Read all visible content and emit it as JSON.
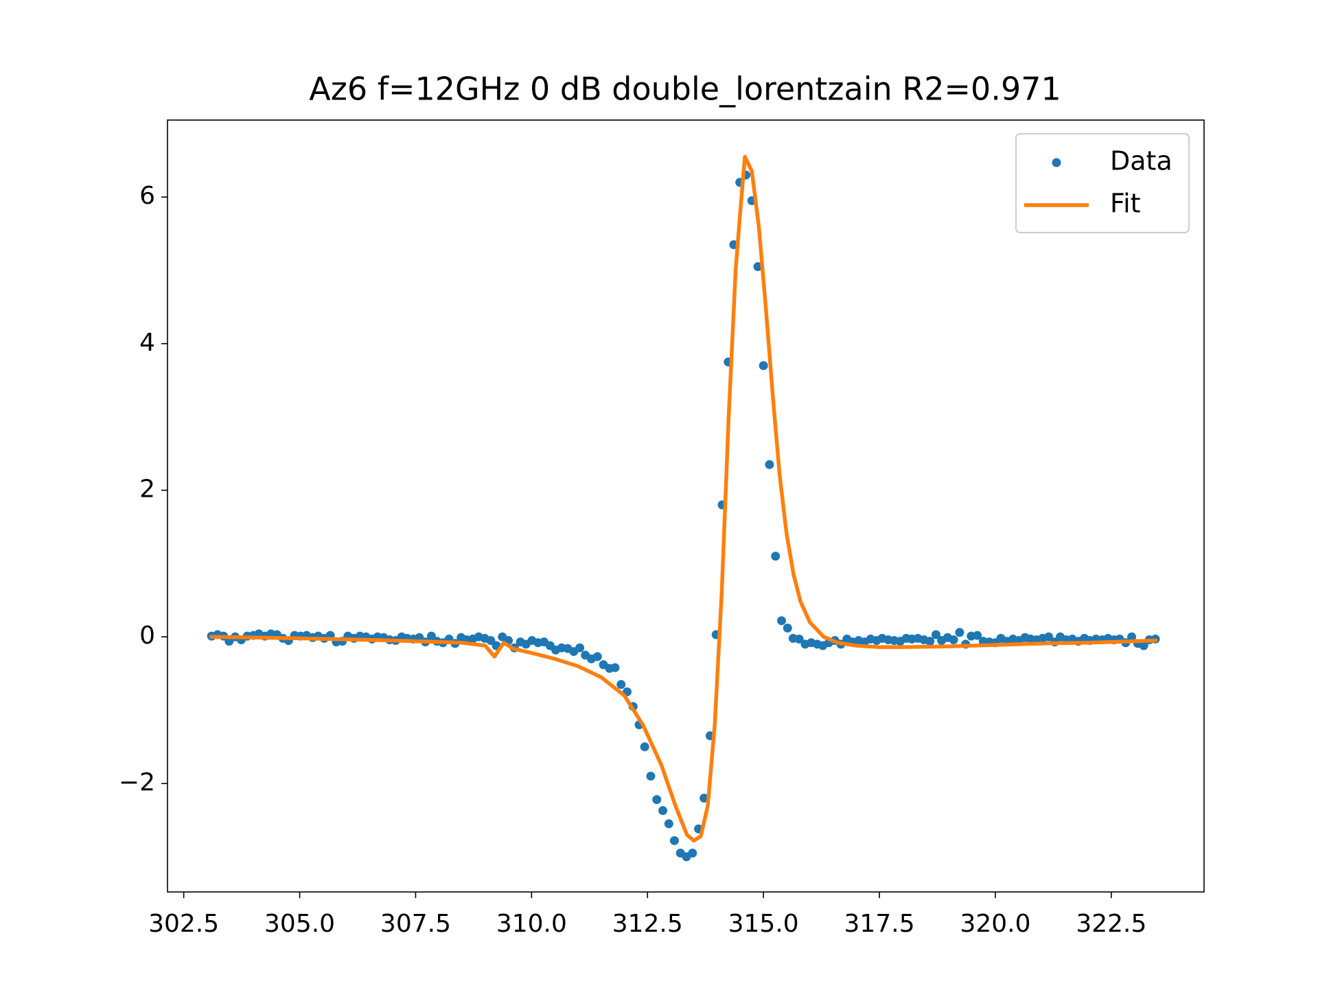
{
  "chart_data": {
    "type": "line",
    "title": "Az6 f=12GHz 0 dB double_lorentzain R2=0.971",
    "xlim": [
      302.15,
      324.5
    ],
    "ylim": [
      -3.48,
      7.05
    ],
    "xticks": [
      302.5,
      {
        "value": 305,
        "label": "305.0"
      },
      307.5,
      {
        "value": 310,
        "label": "310.0"
      },
      312.5,
      {
        "value": 315,
        "label": "315.0"
      },
      317.5,
      {
        "value": 320,
        "label": "320.0"
      },
      322.5
    ],
    "yticks": [
      {
        "value": -2,
        "label": "−2"
      },
      0,
      2,
      4,
      6
    ],
    "grid": false,
    "legend": "upper right",
    "series": [
      {
        "name": "Data",
        "color": "#1f77b4",
        "mode": "markers",
        "x": [
          303.1,
          303.23,
          303.36,
          303.48,
          303.61,
          303.74,
          303.87,
          304.0,
          304.12,
          304.25,
          304.38,
          304.51,
          304.64,
          304.76,
          304.89,
          305.02,
          305.15,
          305.28,
          305.4,
          305.53,
          305.66,
          305.79,
          305.92,
          306.04,
          306.17,
          306.3,
          306.43,
          306.56,
          306.68,
          306.81,
          306.94,
          307.07,
          307.2,
          307.32,
          307.45,
          307.58,
          307.71,
          307.84,
          307.96,
          308.09,
          308.22,
          308.35,
          308.48,
          308.6,
          308.73,
          308.86,
          308.99,
          309.12,
          309.24,
          309.37,
          309.5,
          309.63,
          309.76,
          309.88,
          310.01,
          310.14,
          310.27,
          310.4,
          310.52,
          310.65,
          310.78,
          310.91,
          311.04,
          311.16,
          311.29,
          311.42,
          311.55,
          311.68,
          311.8,
          311.93,
          312.06,
          312.19,
          312.32,
          312.44,
          312.57,
          312.7,
          312.83,
          312.96,
          313.08,
          313.21,
          313.34,
          313.47,
          313.6,
          313.72,
          313.85,
          313.98,
          314.11,
          314.24,
          314.36,
          314.49,
          314.62,
          314.75,
          314.88,
          315.0,
          315.13,
          315.26,
          315.39,
          315.52,
          315.64,
          315.77,
          315.9,
          316.03,
          316.16,
          316.28,
          316.41,
          316.54,
          316.67,
          316.8,
          316.92,
          317.05,
          317.18,
          317.31,
          317.44,
          317.56,
          317.69,
          317.82,
          317.95,
          318.08,
          318.2,
          318.33,
          318.46,
          318.59,
          318.72,
          318.84,
          318.97,
          319.1,
          319.23,
          319.36,
          319.48,
          319.61,
          319.74,
          319.87,
          320.0,
          320.12,
          320.25,
          320.38,
          320.51,
          320.64,
          320.76,
          320.89,
          321.02,
          321.15,
          321.28,
          321.4,
          321.53,
          321.66,
          321.79,
          321.92,
          322.04,
          322.17,
          322.3,
          322.43,
          322.56,
          322.68,
          322.81,
          322.94,
          323.07,
          323.2,
          323.32,
          323.45
        ],
        "values": [
          0.01,
          0.03,
          0.01,
          -0.06,
          0.0,
          -0.04,
          0.01,
          0.02,
          0.04,
          0.01,
          0.04,
          0.03,
          -0.02,
          -0.05,
          0.02,
          0.01,
          0.02,
          -0.01,
          0.01,
          -0.02,
          0.02,
          -0.07,
          -0.06,
          0.01,
          -0.02,
          0.01,
          0.0,
          -0.03,
          0.0,
          -0.01,
          -0.04,
          -0.05,
          0.0,
          -0.02,
          -0.03,
          -0.01,
          -0.07,
          0.01,
          -0.06,
          -0.08,
          -0.03,
          -0.09,
          -0.01,
          -0.04,
          -0.03,
          0.0,
          -0.02,
          -0.05,
          -0.12,
          0.0,
          -0.05,
          -0.15,
          -0.07,
          -0.1,
          -0.05,
          -0.08,
          -0.07,
          -0.12,
          -0.18,
          -0.15,
          -0.16,
          -0.2,
          -0.15,
          -0.25,
          -0.3,
          -0.27,
          -0.38,
          -0.43,
          -0.42,
          -0.65,
          -0.75,
          -0.95,
          -1.2,
          -1.5,
          -1.9,
          -2.22,
          -2.37,
          -2.55,
          -2.78,
          -2.95,
          -3.0,
          -2.95,
          -2.62,
          -2.2,
          -1.35,
          0.03,
          1.8,
          3.75,
          5.35,
          6.2,
          6.3,
          5.95,
          5.05,
          3.7,
          2.35,
          1.1,
          0.22,
          0.12,
          -0.02,
          -0.03,
          -0.1,
          -0.08,
          -0.1,
          -0.12,
          -0.08,
          -0.05,
          -0.1,
          -0.03,
          -0.07,
          -0.05,
          -0.07,
          -0.03,
          -0.05,
          -0.02,
          -0.04,
          -0.05,
          -0.06,
          -0.02,
          -0.03,
          -0.02,
          -0.04,
          -0.06,
          0.03,
          -0.05,
          -0.01,
          -0.04,
          0.06,
          -0.1,
          0.01,
          0.02,
          -0.06,
          -0.07,
          -0.08,
          -0.02,
          -0.06,
          -0.03,
          -0.05,
          -0.01,
          -0.03,
          -0.04,
          -0.02,
          0.0,
          -0.07,
          0.0,
          -0.04,
          -0.03,
          -0.06,
          -0.02,
          -0.05,
          -0.03,
          -0.04,
          -0.02,
          -0.04,
          -0.03,
          -0.08,
          0.0,
          -0.09,
          -0.12,
          -0.04,
          -0.03
        ]
      },
      {
        "name": "Fit",
        "color": "#ff7f0e",
        "mode": "line",
        "x": [
          303.1,
          305.0,
          307.0,
          308.5,
          309.0,
          309.2,
          309.4,
          309.6,
          310.0,
          310.5,
          311.0,
          311.5,
          312.0,
          312.4,
          312.8,
          313.1,
          313.35,
          313.5,
          313.65,
          313.8,
          313.95,
          314.1,
          314.25,
          314.4,
          314.5,
          314.6,
          314.75,
          314.9,
          315.05,
          315.2,
          315.35,
          315.5,
          315.65,
          315.8,
          316.0,
          316.3,
          316.6,
          317.0,
          317.5,
          318.0,
          319.0,
          320.0,
          321.0,
          322.0,
          323.45
        ],
        "values": [
          0,
          -0.02,
          -0.05,
          -0.08,
          -0.12,
          -0.27,
          -0.08,
          -0.16,
          -0.22,
          -0.3,
          -0.4,
          -0.55,
          -0.8,
          -1.2,
          -1.75,
          -2.3,
          -2.7,
          -2.78,
          -2.72,
          -2.3,
          -1.2,
          0.6,
          3.0,
          5.0,
          5.8,
          6.55,
          6.35,
          5.6,
          4.5,
          3.3,
          2.2,
          1.4,
          0.85,
          0.48,
          0.2,
          0.0,
          -0.08,
          -0.12,
          -0.14,
          -0.14,
          -0.13,
          -0.11,
          -0.09,
          -0.08,
          -0.05
        ]
      }
    ]
  }
}
